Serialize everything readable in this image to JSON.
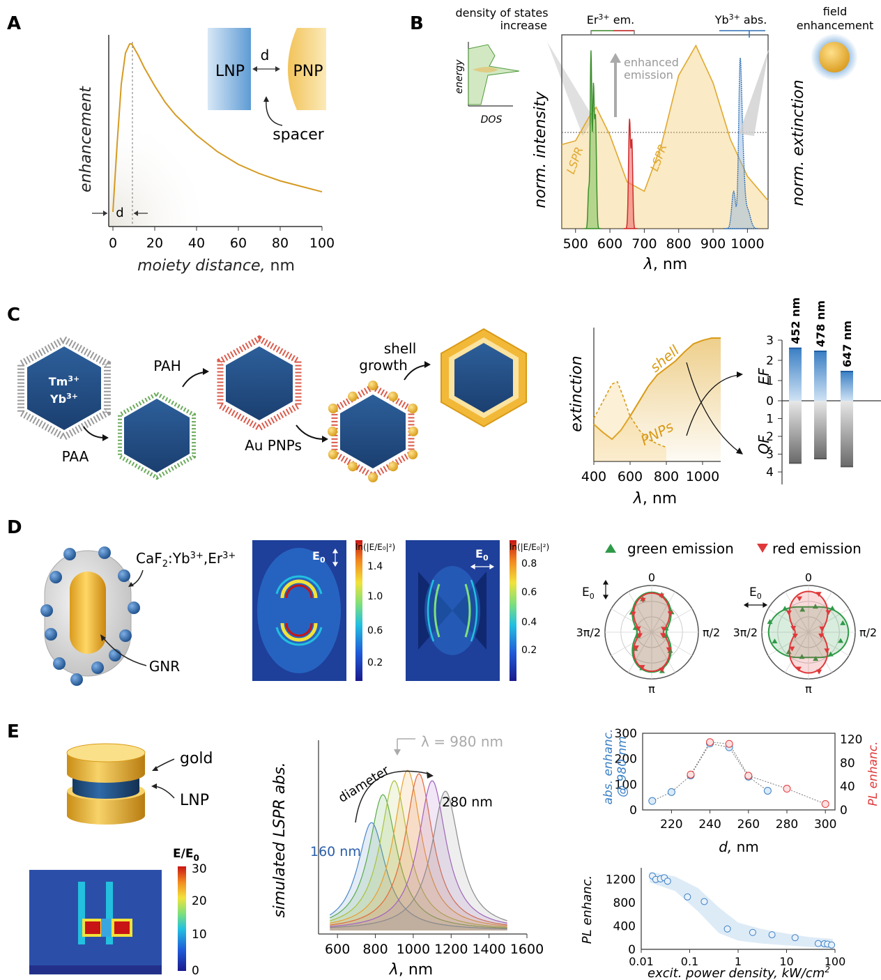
{
  "panel_labels": {
    "a": "A",
    "b": "B",
    "c": "C",
    "d": "D",
    "e": "E"
  },
  "colors": {
    "gold": "#e0a82e",
    "gold_light": "#f7d67a",
    "blue": "#3a7fc4",
    "green": "#3c9a3c",
    "red": "#e0383a",
    "gray": "#8a8a8a"
  },
  "panel_a": {
    "ylabel": "enhancement",
    "xlabel_italic": "moiety distance,",
    "xlabel_unit": "nm",
    "d_label": "d",
    "inset": {
      "lnp": "LNP",
      "pnp": "PNP",
      "d": "d",
      "spacer": "spacer"
    },
    "chart_data": {
      "type": "line",
      "xlabel": "moiety distance, nm",
      "ylabel": "enhancement",
      "xlim": [
        0,
        100
      ],
      "xticks": [
        0,
        20,
        40,
        60,
        80,
        100
      ],
      "x": [
        0,
        2,
        4,
        6,
        8,
        9,
        10,
        12,
        15,
        20,
        25,
        30,
        40,
        50,
        60,
        70,
        80,
        90,
        100
      ],
      "y": [
        0.08,
        0.45,
        0.78,
        0.95,
        1.0,
        1.0,
        0.98,
        0.94,
        0.87,
        0.77,
        0.68,
        0.61,
        0.5,
        0.41,
        0.34,
        0.29,
        0.25,
        0.22,
        0.19
      ]
    }
  },
  "panel_b": {
    "dos_title_1": "density of states",
    "dos_title_2": "increase",
    "dos_ylabel": "energy",
    "dos_xlabel": "DOS",
    "er_em_1": "Er",
    "er_em_sup": "3+",
    "er_em_2": " em.",
    "yb_abs_1": "Yb",
    "yb_abs_sup": "3+",
    "yb_abs_2": " abs.",
    "enhanced_1": "enhanced",
    "enhanced_2": "emission",
    "lspr_1": "LSPR",
    "lspr_2": "LSPR",
    "field_1": "field",
    "field_2": "enhancement",
    "ylabel_left": "norm. intensity",
    "ylabel_right": "norm. extinction",
    "xlabel_symbol": "λ",
    "xlabel_unit": ", nm",
    "chart_data": {
      "type": "line",
      "xlabel": "λ, nm",
      "xlim": [
        460,
        1060
      ],
      "xticks": [
        500,
        600,
        700,
        800,
        900,
        1000
      ],
      "lspr_x": [
        460,
        500,
        540,
        560,
        600,
        650,
        700,
        750,
        800,
        850,
        900,
        950,
        1000,
        1060
      ],
      "lspr_y": [
        0.45,
        0.47,
        0.6,
        0.65,
        0.5,
        0.25,
        0.2,
        0.45,
        0.82,
        0.98,
        0.78,
        0.48,
        0.28,
        0.15
      ],
      "er_green_peaks_nm": [
        540,
        550,
        560
      ],
      "er_red_peak_nm": 660,
      "yb_abs_peak_nm": 980
    }
  },
  "panel_c": {
    "ion_tm": "Tm",
    "ion_tm_sup": "3+",
    "ion_yb": "Yb",
    "ion_yb_sup": "3+",
    "paa": "PAA",
    "pah": "PAH",
    "au_pnps": "Au PNPs",
    "shell_1": "shell",
    "shell_2": "growth",
    "ext_ylabel": "extinction",
    "ext_xlabel_symbol": "λ",
    "ext_xlabel_unit": ", nm",
    "shell_label": "shell",
    "pnps_label": "PNPs",
    "ef_label": "EF",
    "qf_label": "QF",
    "chart_data": [
      {
        "type": "line",
        "xlabel": "λ, nm",
        "ylabel": "extinction",
        "xlim": [
          400,
          1100
        ],
        "xticks": [
          400,
          600,
          800,
          1000
        ],
        "series": [
          {
            "name": "shell",
            "x": [
              400,
              450,
              500,
              550,
              600,
              650,
              700,
              750,
              800,
              850,
              900,
              950,
              1000,
              1050,
              1100
            ],
            "y": [
              0.25,
              0.18,
              0.12,
              0.2,
              0.32,
              0.45,
              0.58,
              0.68,
              0.74,
              0.8,
              0.88,
              0.95,
              0.98,
              1.0,
              1.0
            ]
          },
          {
            "name": "PNPs",
            "x": [
              400,
              450,
              500,
              530,
              560,
              600,
              650,
              700,
              750,
              800
            ],
            "y": [
              0.3,
              0.45,
              0.6,
              0.62,
              0.5,
              0.32,
              0.2,
              0.12,
              0.08,
              0.05
            ]
          }
        ]
      },
      {
        "type": "bar",
        "categories": [
          "452 nm",
          "478 nm",
          "647 nm"
        ],
        "series": [
          {
            "name": "EF",
            "values": [
              2.6,
              2.45,
              1.45
            ]
          },
          {
            "name": "QF",
            "values": [
              3.5,
              3.25,
              3.7
            ]
          }
        ],
        "yticks": [
          0,
          1,
          2,
          3
        ],
        "qf_ticks": [
          1,
          2,
          3,
          4
        ]
      }
    ]
  },
  "panel_d": {
    "caf_1": "CaF",
    "caf_sub": "2",
    "caf_2": ":Yb",
    "caf_sup1": "3+",
    "caf_3": ",Er",
    "caf_sup2": "3+",
    "gnr": "GNR",
    "e0": "E",
    "e0_sub": "0",
    "cbar_title": "ln(|E/E₀|²)",
    "cbar1_ticks": [
      "1.4",
      "1.0",
      "0.6",
      "0.2"
    ],
    "cbar2_ticks": [
      "0.8",
      "0.6",
      "0.4",
      "0.2"
    ],
    "legend_green": "green emission",
    "legend_red": "red emission",
    "polar_0": "0",
    "polar_pi2": "π/2",
    "polar_pi": "π",
    "polar_3pi2": "3π/2"
  },
  "panel_e": {
    "gold": "gold",
    "lnp": "LNP",
    "cbar_title_e": "E/E",
    "cbar_title_sub": "0",
    "cbar_ticks": [
      "30",
      "20",
      "10",
      "0"
    ],
    "sim_ylabel": "simulated LSPR abs.",
    "sim_xlabel_symbol": "λ",
    "sim_xlabel_unit": ", nm",
    "lambda_label": "λ = 980 nm",
    "diameter": "diameter",
    "d160": "160 nm",
    "d280": "280 nm",
    "abs_ylabel_1": "abs. enhanc.",
    "abs_ylabel_2": "@ 980 nm",
    "pl_ylabel": "PL enhanc.",
    "d_xlabel_italic": "d,",
    "d_xlabel_unit": " nm",
    "pl2_ylabel": "PL enhanc.",
    "power_xlabel": "excit. power density, kW/cm",
    "power_xlabel_sup": "2",
    "chart_data": [
      {
        "type": "line",
        "xlabel": "λ, nm",
        "ylabel": "simulated LSPR abs.",
        "xlim": [
          500,
          1600
        ],
        "xticks": [
          600,
          800,
          1000,
          1200,
          1400,
          1600
        ],
        "series": [
          {
            "name": "160 nm",
            "peak": 780,
            "height": 0.62
          },
          {
            "peak": 840,
            "height": 0.78
          },
          {
            "peak": 900,
            "height": 0.86
          },
          {
            "peak": 970,
            "height": 0.92
          },
          {
            "peak": 1030,
            "height": 0.9
          },
          {
            "peak": 1100,
            "height": 0.86
          },
          {
            "name": "280 nm",
            "peak": 1170,
            "height": 0.8
          }
        ]
      },
      {
        "type": "scatter",
        "xlabel": "d, nm",
        "xlim": [
          205,
          305
        ],
        "xticks": [
          220,
          240,
          260,
          280,
          300
        ],
        "series": [
          {
            "name": "abs. enhanc. @ 980 nm",
            "x": [
              210,
              220,
              230,
              240,
              250,
              260,
              270
            ],
            "y": [
              35,
              70,
              135,
              260,
              245,
              130,
              75
            ],
            "ylim": [
              0,
              300
            ],
            "yticks": [
              0,
              100,
              200,
              300
            ]
          },
          {
            "name": "PL enhanc.",
            "x": [
              230,
              240,
              250,
              260,
              280,
              300
            ],
            "y": [
              60,
              115,
              112,
              58,
              36,
              10
            ],
            "ylim": [
              0,
              130
            ],
            "yticks": [
              0,
              40,
              80,
              120
            ]
          }
        ]
      },
      {
        "type": "scatter",
        "xlabel": "excit. power density, kW/cm2",
        "ylabel": "PL enhanc.",
        "xscale": "log",
        "xlim": [
          0.01,
          100
        ],
        "ylim": [
          0,
          1400
        ],
        "yticks": [
          0,
          400,
          800,
          1200
        ],
        "xtick_labels": [
          "0.01",
          "0.1",
          "1",
          "10",
          "100"
        ],
        "x": [
          0.017,
          0.02,
          0.025,
          0.03,
          0.035,
          0.09,
          0.2,
          0.6,
          2,
          5,
          15,
          45,
          60,
          70,
          85
        ],
        "y": [
          1260,
          1200,
          1210,
          1230,
          1170,
          900,
          820,
          350,
          290,
          250,
          200,
          100,
          95,
          90,
          75
        ]
      }
    ]
  }
}
